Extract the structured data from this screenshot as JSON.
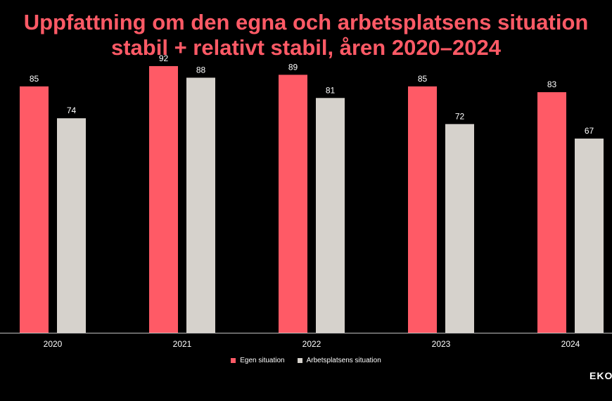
{
  "colors": {
    "background": "#000000",
    "title": "#ff5a66",
    "series_1": "#ff5a66",
    "series_2": "#d6d2cc",
    "text": "#ffffff"
  },
  "brand_text": "EKON",
  "chart_data": {
    "type": "bar",
    "title_lines": [
      "Uppfattning om den egna och arbetsplatsens situation",
      "stabil + relativt stabil, åren 2020–2024"
    ],
    "categories": [
      "2020",
      "2021",
      "2022",
      "2023",
      "2024"
    ],
    "series": [
      {
        "name": "Egen situation",
        "values": [
          85,
          92,
          89,
          85,
          83
        ]
      },
      {
        "name": "Arbetsplatsens situation",
        "values": [
          74,
          88,
          81,
          72,
          67
        ]
      }
    ],
    "ylim": [
      0,
      100
    ],
    "grid": false,
    "legend_position": "bottom"
  }
}
